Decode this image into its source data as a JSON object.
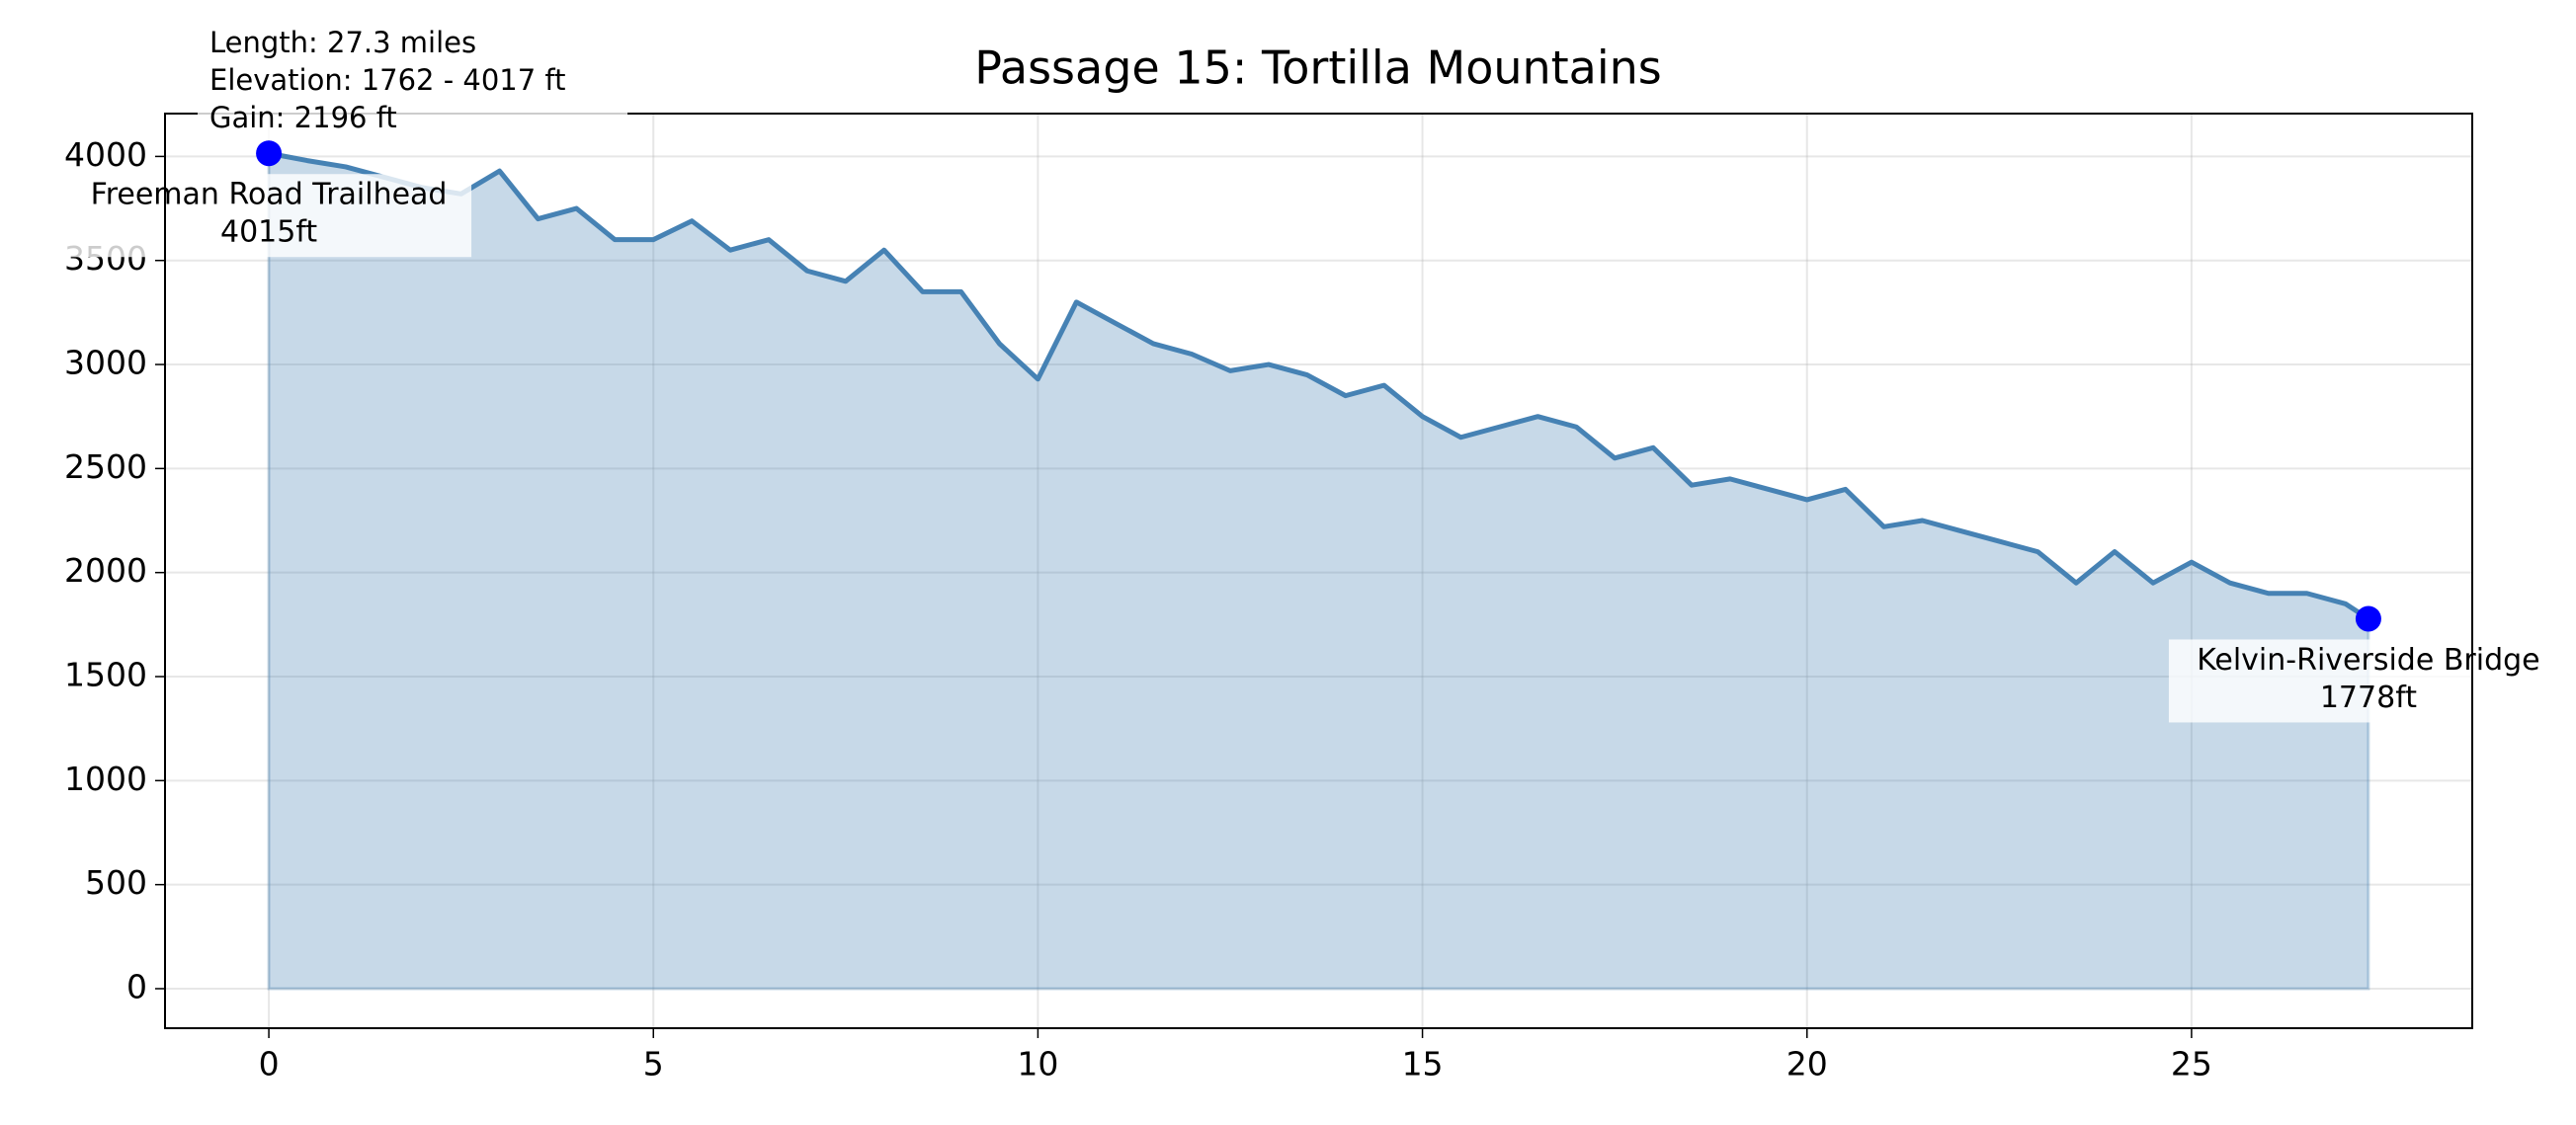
{
  "chart_data": {
    "type": "area",
    "title": "Passage 15: Tortilla Mountains",
    "info": [
      "Length: 27.3 miles",
      "Elevation: 1762 - 4017 ft",
      "Gain: 2196 ft"
    ],
    "x": [
      0,
      0.5,
      1,
      1.5,
      2,
      2.5,
      3,
      3.5,
      4,
      4.5,
      5,
      5.5,
      6,
      6.5,
      7,
      7.5,
      8,
      8.5,
      9,
      9.5,
      10,
      10.5,
      11,
      11.5,
      12,
      12.5,
      13,
      13.5,
      14,
      14.5,
      15,
      15.5,
      16,
      16.5,
      17,
      17.5,
      18,
      18.5,
      19,
      19.5,
      20,
      20.5,
      21,
      21.5,
      22,
      22.5,
      23,
      23.5,
      24,
      24.5,
      25,
      25.5,
      26,
      26.5,
      27,
      27.3
    ],
    "series": [
      {
        "name": "Elevation",
        "color": "#4682b4",
        "values": [
          4015,
          3980,
          3950,
          3900,
          3850,
          3820,
          3930,
          3700,
          3750,
          3600,
          3600,
          3690,
          3550,
          3600,
          3450,
          3400,
          3550,
          3350,
          3350,
          3100,
          2930,
          3300,
          3200,
          3100,
          3050,
          2970,
          3000,
          2950,
          2850,
          2900,
          2750,
          2650,
          2700,
          2750,
          2700,
          2550,
          2600,
          2420,
          2450,
          2400,
          2350,
          2400,
          2220,
          2250,
          2200,
          2150,
          2100,
          1950,
          2100,
          1950,
          2050,
          1950,
          1900,
          1900,
          1850,
          1778
        ]
      }
    ],
    "annotations": [
      {
        "name": "Freeman Road Trailhead",
        "x": 0,
        "value": 4015,
        "value_label": "4015ft"
      },
      {
        "name": "Kelvin-Riverside Bridge",
        "x": 27.3,
        "value": 1778,
        "value_label": "1778ft"
      }
    ],
    "marker_color": "#0000ff",
    "xlim": [
      -1.35,
      28.65
    ],
    "xticks": [
      0,
      5,
      10,
      15,
      20,
      25
    ],
    "ylim": [
      -190,
      4206
    ],
    "yticks": [
      0,
      500,
      1000,
      1500,
      2000,
      2500,
      3000,
      3500,
      4000
    ],
    "grid": true
  }
}
